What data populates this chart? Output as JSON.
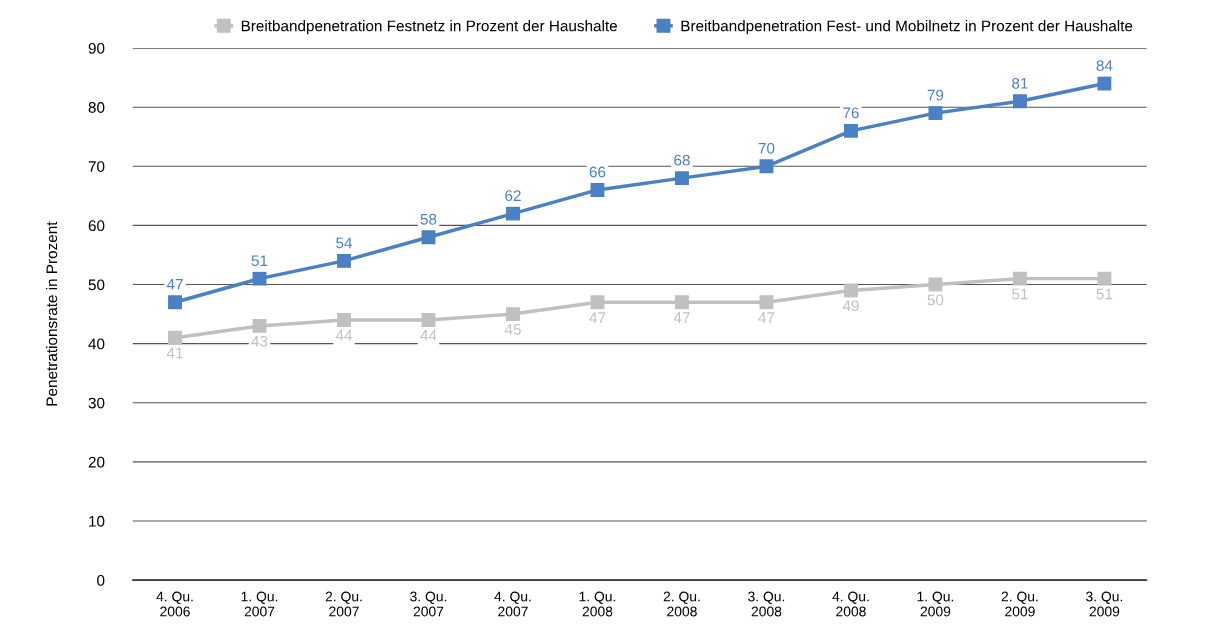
{
  "chart_data": {
    "type": "line",
    "ylabel": "Penetrationsrate in Prozent",
    "categories": [
      "4. Qu.\n2006",
      "1. Qu.\n2007",
      "2. Qu.\n2007",
      "3. Qu.\n2007",
      "4. Qu.\n2007",
      "1. Qu.\n2008",
      "2. Qu.\n2008",
      "3. Qu.\n2008",
      "4. Qu.\n2008",
      "1. Qu.\n2009",
      "2. Qu.\n2009",
      "3. Qu.\n2009"
    ],
    "series": [
      {
        "name": "Breitbandpenetration Festnetz in Prozent der Haushalte",
        "color": "#c0c0c2",
        "values": [
          41,
          43,
          44,
          44,
          45,
          47,
          47,
          47,
          49,
          50,
          51,
          51
        ]
      },
      {
        "name": "Breitbandpenetration Fest- und Mobilnetz in Prozent der Haushalte",
        "color": "#4a80c4",
        "values": [
          47,
          51,
          54,
          58,
          62,
          66,
          68,
          70,
          76,
          79,
          81,
          84
        ]
      }
    ],
    "ylim": [
      0,
      90
    ],
    "yticks": [
      0,
      10,
      20,
      30,
      40,
      50,
      60,
      70,
      80,
      90
    ],
    "grid": "y",
    "legend": "top right",
    "marker": "square",
    "line_style": "solid",
    "data_labels": true
  }
}
